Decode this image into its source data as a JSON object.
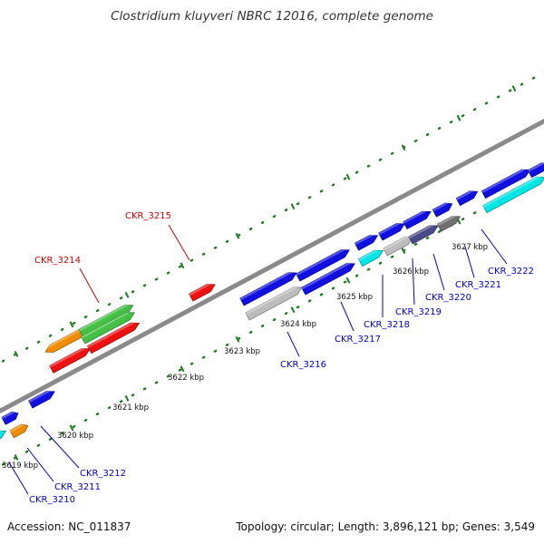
{
  "title": "Clostridium kluyveri NBRC 12016, complete genome",
  "footer": {
    "accession": "Accession: NC_011837",
    "summary": "Topology: circular; Length: 3,896,121 bp; Genes: 3,549"
  },
  "scale_labels": [
    "3619 kbp",
    "3620 kbp",
    "3621 kbp",
    "3622 kbp",
    "3623 kbp",
    "3624 kbp",
    "3625 kbp",
    "3626 kbp",
    "3627 kbp"
  ],
  "gene_labels": [
    {
      "text": "CKR_3210",
      "color": "#0000cc"
    },
    {
      "text": "CKR_3211",
      "color": "#0000cc"
    },
    {
      "text": "CKR_3212",
      "color": "#0000cc"
    },
    {
      "text": "CKR_3214",
      "color": "#cc0000"
    },
    {
      "text": "CKR_3215",
      "color": "#cc0000"
    },
    {
      "text": "CKR_3216",
      "color": "#0000cc"
    },
    {
      "text": "CKR_3217",
      "color": "#0000cc"
    },
    {
      "text": "CKR_3218",
      "color": "#0000cc"
    },
    {
      "text": "CKR_3219",
      "color": "#0000cc"
    },
    {
      "text": "CKR_3220",
      "color": "#0000cc"
    },
    {
      "text": "CKR_3221",
      "color": "#0000cc"
    },
    {
      "text": "CKR_3222",
      "color": "#0000cc"
    }
  ],
  "colors": {
    "blue": "#1010e0",
    "cyan": "#00e5e5",
    "gray": "#bdbdbd",
    "red": "#ee1111",
    "green": "#44c044",
    "orange": "#f08c00",
    "slate": "#4a4a8a",
    "darkgray": "#707070",
    "backbone": "#8a8a8a",
    "tick": "#1d7a1d"
  }
}
